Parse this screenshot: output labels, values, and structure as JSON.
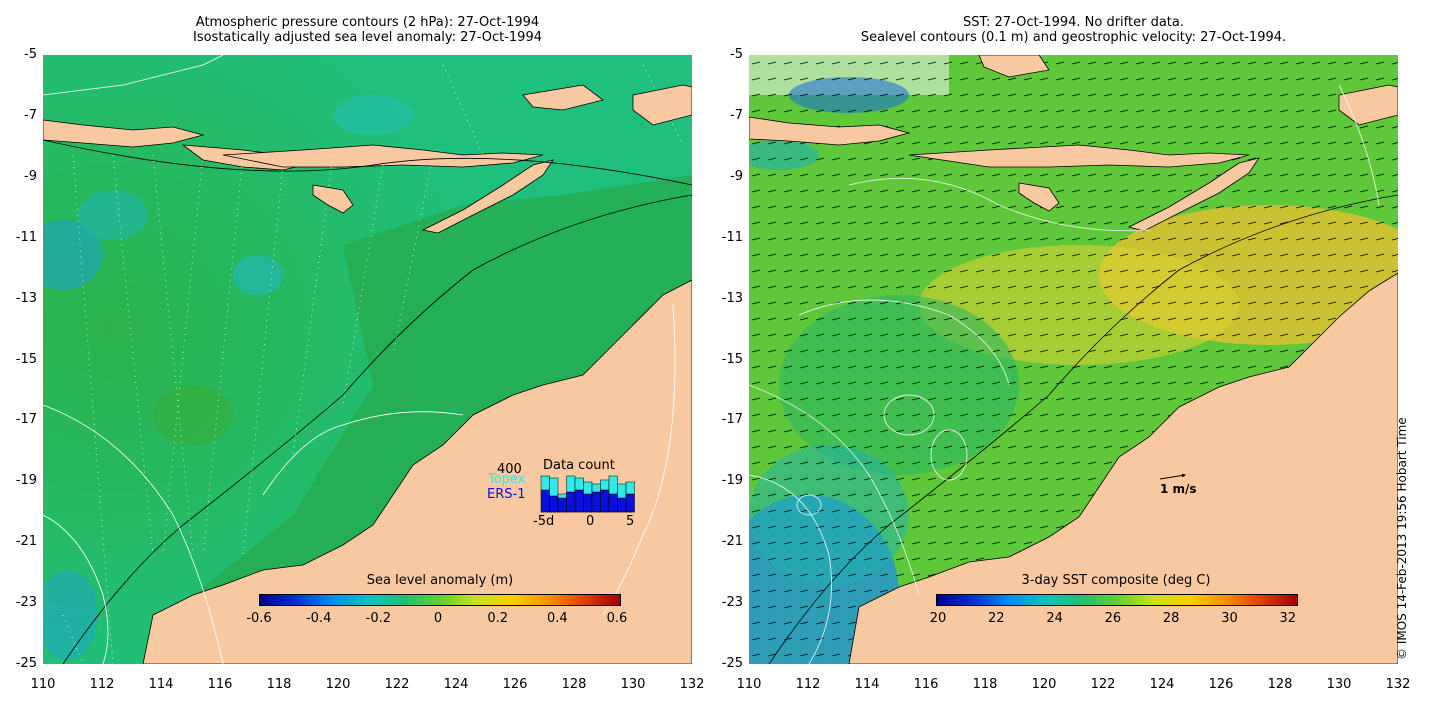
{
  "left_panel": {
    "title_line1": "Atmospheric pressure contours (2 hPa): 27-Oct-1994",
    "title_line2": "Isostatically adjusted sea level anomaly: 27-Oct-1994",
    "colorbar_title": "Sea level anomaly (m)",
    "colorbar_ticks": [
      "-0.6",
      "-0.4",
      "-0.2",
      "0",
      "0.2",
      "0.4",
      "0.6"
    ],
    "inset": {
      "count_label": "400",
      "topex_label": "Topex",
      "ers_label": "ERS-1",
      "title": "Data count",
      "axis_ticks": [
        "-5d",
        "0",
        "5"
      ],
      "topex_color": "#33e8e8",
      "ers_color": "#0a10d8"
    }
  },
  "right_panel": {
    "title_line1": "SST: 27-Oct-1994. No drifter data.",
    "title_line2": "Sealevel contours (0.1 m) and geostrophic velocity: 27-Oct-1994.",
    "colorbar_title": "3-day SST composite (deg C)",
    "colorbar_ticks": [
      "20",
      "22",
      "24",
      "26",
      "28",
      "30",
      "32"
    ],
    "scale_label": "1 m/s"
  },
  "axes": {
    "y_ticks": [
      "-5",
      "-7",
      "-9",
      "-11",
      "-13",
      "-15",
      "-17",
      "-19",
      "-21",
      "-23",
      "-25"
    ],
    "x_ticks": [
      "110",
      "112",
      "114",
      "116",
      "118",
      "120",
      "122",
      "124",
      "126",
      "128",
      "130",
      "132"
    ]
  },
  "copyright": "© IMOS 14-Feb-2013 19:56 Hobart Time",
  "colors": {
    "land": "#f8c9a0",
    "ocean_left": "#1fbf7a",
    "ocean_right": "#6fd12a"
  }
}
